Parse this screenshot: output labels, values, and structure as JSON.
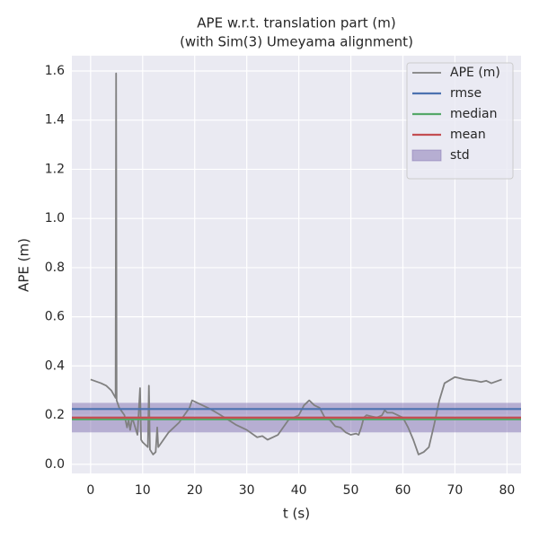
{
  "chart_data": {
    "type": "line",
    "title": "APE w.r.t. translation part (m)",
    "subtitle": "(with Sim(3) Umeyama alignment)",
    "xlabel": "t (s)",
    "ylabel": "APE (m)",
    "xlim": [
      -3.6,
      82.7
    ],
    "ylim": [
      -0.037,
      1.662
    ],
    "xticks": [
      0,
      10,
      20,
      30,
      40,
      50,
      60,
      70,
      80
    ],
    "yticks": [
      {
        "value": 0,
        "label": "0.0"
      },
      0.2,
      0.4,
      0.6,
      0.8,
      {
        "value": 1,
        "label": "1.0"
      },
      1.2,
      1.4,
      1.6
    ],
    "grid": true,
    "legend": "upper right",
    "series": [
      {
        "name": "APE (m)",
        "color": "#808080",
        "x": [
          0,
          2,
          3,
          4,
          4.8,
          4.9,
          5.0,
          5.5,
          6.5,
          7,
          7.3,
          7.6,
          8,
          9,
          9.5,
          9.7,
          10,
          11,
          11.2,
          11.4,
          12,
          12.5,
          12.8,
          13,
          14,
          15,
          17,
          18,
          19,
          19.5,
          21,
          23,
          25,
          28,
          30,
          32,
          33,
          34,
          35,
          36,
          38,
          40,
          41,
          42,
          43,
          44,
          45,
          46,
          47,
          48,
          49,
          50,
          51,
          51.5,
          52,
          52.5,
          53,
          55,
          56,
          56.5,
          57,
          58,
          60,
          61,
          62,
          63,
          64,
          65,
          66,
          67,
          68,
          70,
          72,
          74,
          75,
          76,
          77,
          79
        ],
        "values": [
          0.345,
          0.33,
          0.32,
          0.3,
          0.27,
          1.59,
          0.26,
          0.23,
          0.2,
          0.15,
          0.18,
          0.14,
          0.19,
          0.12,
          0.31,
          0.1,
          0.09,
          0.07,
          0.32,
          0.06,
          0.04,
          0.05,
          0.15,
          0.07,
          0.1,
          0.13,
          0.17,
          0.2,
          0.23,
          0.26,
          0.245,
          0.225,
          0.2,
          0.16,
          0.14,
          0.11,
          0.115,
          0.1,
          0.11,
          0.12,
          0.18,
          0.2,
          0.24,
          0.26,
          0.24,
          0.23,
          0.19,
          0.18,
          0.155,
          0.15,
          0.13,
          0.12,
          0.125,
          0.12,
          0.15,
          0.19,
          0.2,
          0.19,
          0.2,
          0.22,
          0.21,
          0.21,
          0.19,
          0.15,
          0.1,
          0.04,
          0.05,
          0.07,
          0.16,
          0.26,
          0.33,
          0.355,
          0.345,
          0.34,
          0.335,
          0.34,
          0.33,
          0.345
        ]
      }
    ],
    "stats": [
      {
        "name": "rmse",
        "color": "#4c72b0",
        "value": 0.225
      },
      {
        "name": "median",
        "color": "#55a868",
        "value": 0.183
      },
      {
        "name": "mean",
        "color": "#c44e52",
        "value": 0.19
      }
    ],
    "std": {
      "name": "std",
      "color": "#8172b2",
      "value": 0.06
    }
  }
}
